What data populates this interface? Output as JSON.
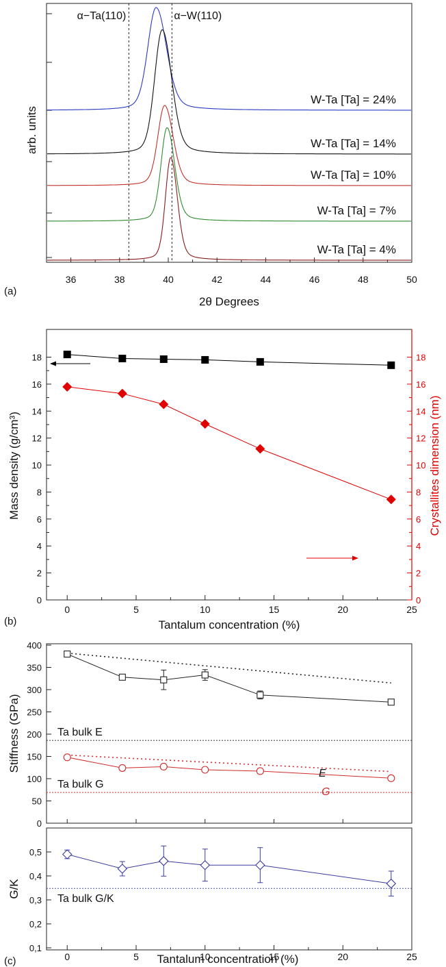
{
  "chart_data": [
    {
      "panel": "(a)",
      "type": "line",
      "xlabel": "2θ Degrees",
      "ylabel": "arb. units",
      "xlim": [
        35,
        50
      ],
      "xticks": [
        "36",
        "38",
        "40",
        "42",
        "44",
        "46",
        "48",
        "50"
      ],
      "reference_lines": [
        {
          "label": "α−Ta(110)",
          "x": 38.38
        },
        {
          "label": "α−W(110)",
          "x": 40.15
        }
      ],
      "series": [
        {
          "label": "W-Ta [Ta] = 24%",
          "color": "#2a39c4",
          "peak_center": 39.5,
          "peak_width": 0.33,
          "relative_height": 1.0
        },
        {
          "label": "W-Ta [Ta] = 14%",
          "color": "#111111",
          "peak_center": 39.75,
          "peak_width": 0.3,
          "relative_height": 1.21
        },
        {
          "label": "W-Ta [Ta] = 10%",
          "color": "#c0302a",
          "peak_center": 39.85,
          "peak_width": 0.27,
          "relative_height": 0.78
        },
        {
          "label": "W-Ta [Ta] = 7%",
          "color": "#2e8b2e",
          "peak_center": 39.95,
          "peak_width": 0.24,
          "relative_height": 0.91
        },
        {
          "label": "W-Ta [Ta] = 4%",
          "color": "#8b1a1a",
          "peak_center": 40.1,
          "peak_width": 0.21,
          "relative_height": 1.0
        }
      ]
    },
    {
      "panel": "(b)",
      "type": "scatter",
      "xlabel": "Tantalum concentration (%)",
      "ylabel_left": "Mass density (g/cm³)",
      "ylabel_right": "Crystallites dimension (nm)",
      "xlim": [
        -1.5,
        25
      ],
      "ylim": [
        0,
        19.5
      ],
      "xticks": [
        "0",
        "5",
        "10",
        "15",
        "20",
        "25"
      ],
      "yticks_left": [
        "0",
        "2",
        "4",
        "6",
        "8",
        "10",
        "12",
        "14",
        "16",
        "18"
      ],
      "yticks_right": [
        "0",
        "2",
        "4",
        "6",
        "8",
        "10",
        "12",
        "14",
        "16",
        "18"
      ],
      "series": [
        {
          "name": "Mass density",
          "axis": "left",
          "color": "#000000",
          "marker": "square",
          "x": [
            0,
            4,
            7,
            10,
            14,
            23.5
          ],
          "y": [
            18.2,
            17.9,
            17.85,
            17.8,
            17.65,
            17.4
          ]
        },
        {
          "name": "Crystallites dimension",
          "axis": "right",
          "color": "#e00000",
          "marker": "diamond",
          "x": [
            0,
            4,
            7,
            10,
            14,
            23.5
          ],
          "y": [
            15.8,
            15.3,
            14.5,
            13.05,
            11.2,
            7.45
          ]
        }
      ]
    },
    {
      "panel": "(c)",
      "type": "line",
      "subplots": [
        {
          "ylabel": "Stiffness (GPa)",
          "ylim": [
            0,
            400
          ],
          "xlim": [
            -1.5,
            25
          ],
          "yticks": [
            "0",
            "50",
            "100",
            "150",
            "200",
            "250",
            "300",
            "350",
            "400"
          ],
          "series": [
            {
              "label": "E",
              "color": "#222222",
              "marker": "open-square",
              "x": [
                0,
                4,
                7,
                10,
                14,
                23.5
              ],
              "y": [
                380,
                328,
                322,
                333,
                288,
                272
              ],
              "err": [
                4,
                5,
                22,
                12,
                9,
                5
              ],
              "trend": {
                "x": [
                  0,
                  23.5
                ],
                "y": [
                  382,
                  315
                ]
              }
            },
            {
              "label": "G",
              "color": "#d02a2a",
              "marker": "open-circle",
              "x": [
                0,
                4,
                7,
                10,
                14,
                23.5
              ],
              "y": [
                148,
                124,
                127,
                120,
                117,
                101
              ],
              "err": [
                5,
                5,
                5,
                5,
                6,
                5
              ],
              "trend": {
                "x": [
                  0,
                  23.5
                ],
                "y": [
                  153,
                  116
                ]
              }
            }
          ],
          "reference_lines": [
            {
              "label": "Ta bulk E",
              "y": 186,
              "color": "#333333"
            },
            {
              "label": "Ta bulk G",
              "y": 69,
              "color": "#d02a2a"
            }
          ]
        },
        {
          "ylabel": "G/K",
          "xlabel": "Tantalum concentration (%)",
          "ylim": [
            0.1,
            0.55
          ],
          "xlim": [
            -1.5,
            25
          ],
          "xticks": [
            "0",
            "5",
            "10",
            "15",
            "20",
            "25"
          ],
          "yticks": [
            "0,1",
            "0,2",
            "0,3",
            "0,4",
            "0,5"
          ],
          "series": [
            {
              "name": "G/K",
              "color": "#3a3aa0",
              "marker": "open-diamond",
              "x": [
                0,
                4,
                7,
                10,
                14,
                23.5
              ],
              "y": [
                0.49,
                0.43,
                0.462,
                0.445,
                0.445,
                0.368
              ],
              "err": [
                0.018,
                0.03,
                0.063,
                0.067,
                0.073,
                0.052
              ]
            }
          ],
          "reference_lines": [
            {
              "label": "Ta bulk G/K",
              "y": 0.348,
              "color": "#4a4aa8"
            }
          ]
        }
      ]
    }
  ]
}
